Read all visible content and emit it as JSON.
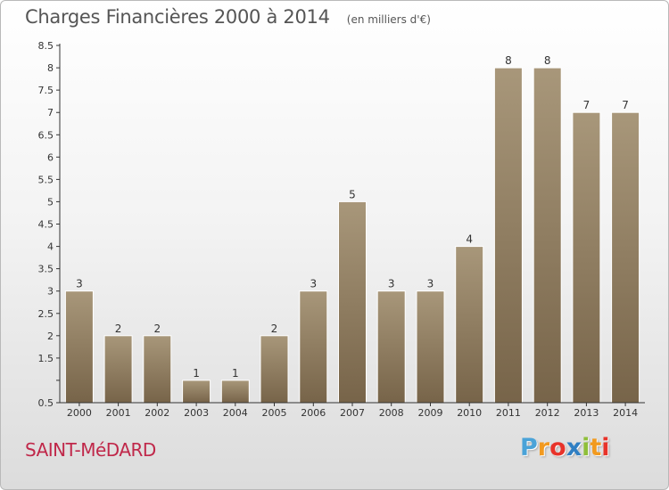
{
  "chart_data": {
    "type": "bar",
    "title": "Charges Financières 2000 à 2014",
    "subtitle": "(en milliers d'€)",
    "categories": [
      "2000",
      "2001",
      "2002",
      "2003",
      "2004",
      "2005",
      "2006",
      "2007",
      "2008",
      "2009",
      "2010",
      "2011",
      "2012",
      "2013",
      "2014"
    ],
    "values": [
      3,
      2,
      2,
      1,
      1,
      2,
      3,
      5,
      3,
      3,
      4,
      8,
      8,
      7,
      7
    ],
    "ylim": [
      0.5,
      8.5
    ],
    "yticks": [
      "0.5",
      "",
      "1.5",
      "2",
      "2.5",
      "3",
      "3.5",
      "4",
      "4.5",
      "5",
      "5.5",
      "6",
      "6.5",
      "7",
      "7.5",
      "8",
      "8.5"
    ],
    "grid": false,
    "legend": "none",
    "colors": {
      "bar_top": "#a8977a",
      "bar_bottom": "#776449",
      "axis": "#333333"
    }
  },
  "footer": {
    "commune": "SAINT-MéDARD",
    "logo": [
      "P",
      "r",
      "o",
      "x",
      "i",
      "t",
      "i"
    ],
    "logo_colors": [
      "#4aa3d8",
      "#f29a1f",
      "#e8332a",
      "#2f7fc3",
      "#8fbf3a",
      "#f29a1f",
      "#e8332a"
    ]
  }
}
